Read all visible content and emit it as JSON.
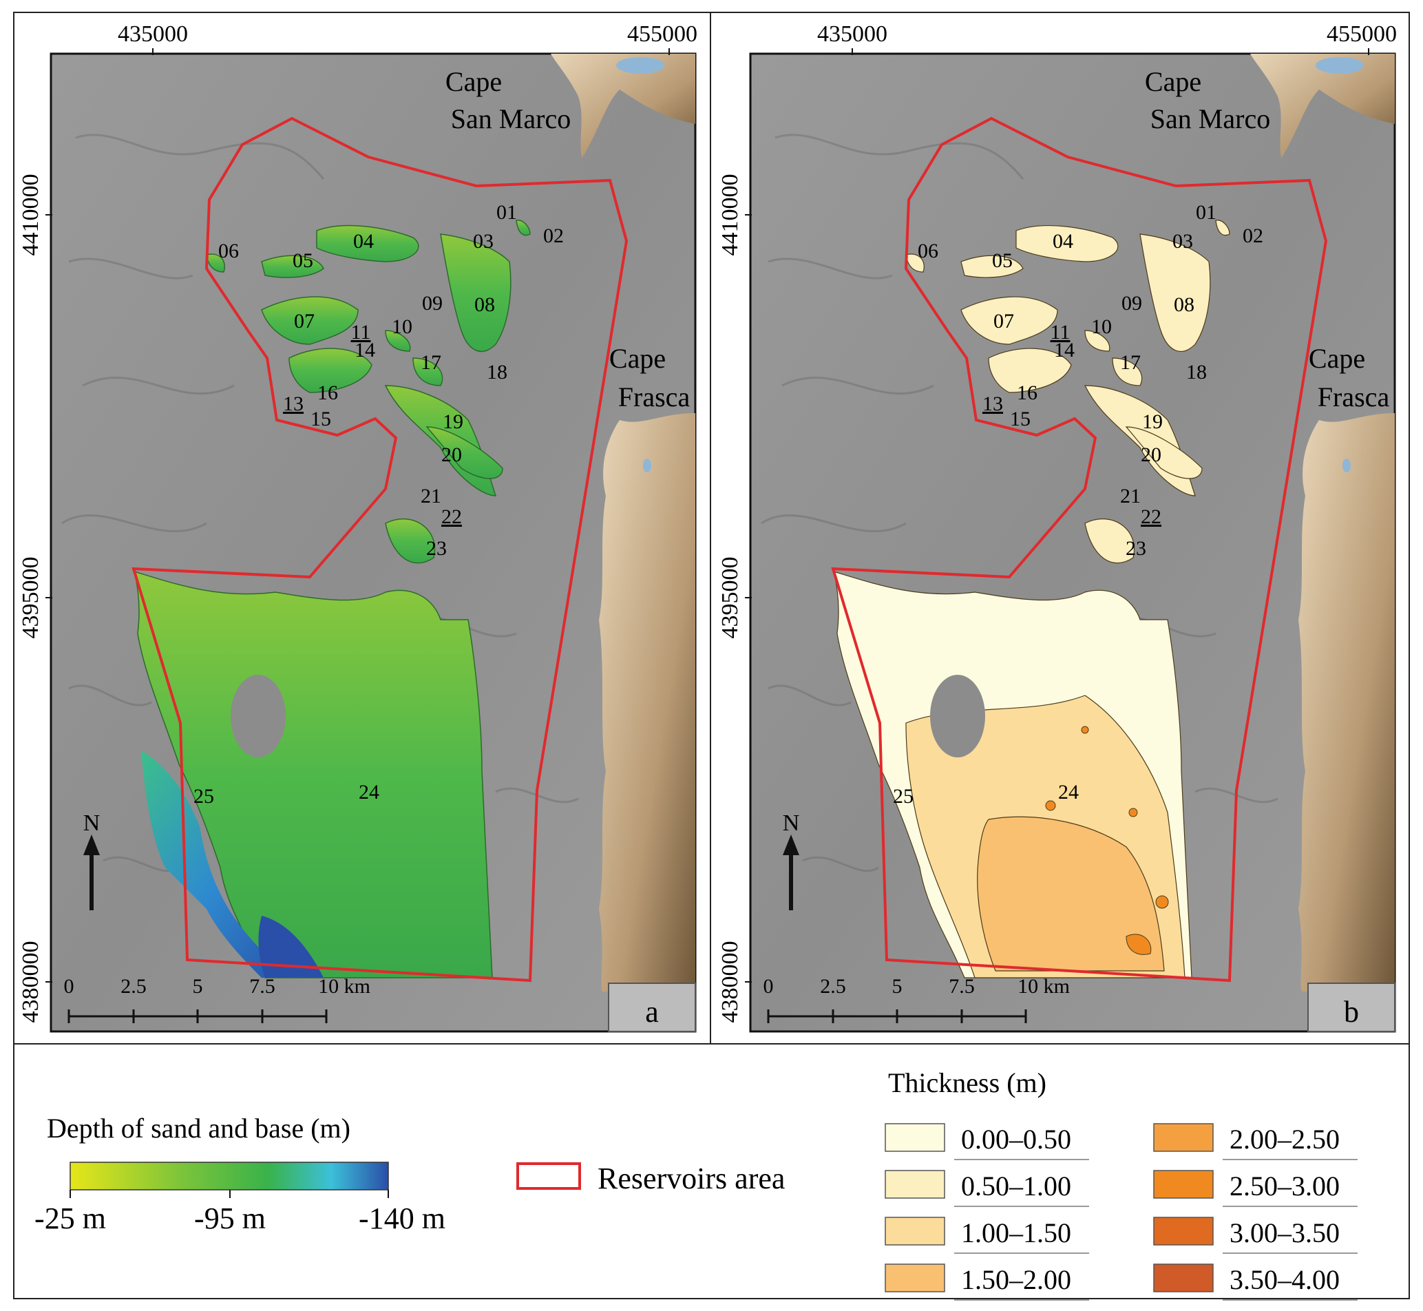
{
  "panels": [
    {
      "letter": "a",
      "x_ticks": [
        "435000",
        "455000"
      ],
      "y_ticks": [
        "4410000",
        "4395000",
        "4380000"
      ],
      "places": {
        "cape_north_1": "Cape",
        "cape_north_2": "San Marco",
        "cape_east_1": "Cape",
        "cape_east_2": "Frasca"
      },
      "scale_labels": [
        "0",
        "2.5",
        "5",
        "7.5",
        "10 km"
      ],
      "north_label": "N",
      "reservoir_ids": [
        "01",
        "02",
        "03",
        "04",
        "05",
        "06",
        "07",
        "08",
        "09",
        "10",
        "11",
        "13",
        "14",
        "15",
        "16",
        "17",
        "18",
        "19",
        "20",
        "21",
        "22",
        "23",
        "24",
        "25"
      ]
    },
    {
      "letter": "b",
      "x_ticks": [
        "435000",
        "455000"
      ],
      "y_ticks": [
        "4410000",
        "4395000",
        "4380000"
      ],
      "places": {
        "cape_north_1": "Cape",
        "cape_north_2": "San Marco",
        "cape_east_1": "Cape",
        "cape_east_2": "Frasca"
      },
      "scale_labels": [
        "0",
        "2.5",
        "5",
        "7.5",
        "10 km"
      ],
      "north_label": "N",
      "reservoir_ids": [
        "01",
        "02",
        "03",
        "04",
        "05",
        "06",
        "07",
        "08",
        "09",
        "10",
        "11",
        "13",
        "14",
        "15",
        "16",
        "17",
        "18",
        "19",
        "20",
        "21",
        "22",
        "23",
        "24",
        "25"
      ]
    }
  ],
  "legend": {
    "depth": {
      "title": "Depth of sand and base (m)",
      "stops": [
        "-25 m",
        "-95 m",
        "-140 m"
      ],
      "colors": [
        "#e6e619",
        "#5cbf3a",
        "#3ab24a",
        "#3cc0d9",
        "#2a4fa8"
      ]
    },
    "reservoir": {
      "label": "Reservoirs area",
      "color": "#e02a2e"
    },
    "thickness": {
      "title": "Thickness (m)",
      "classes": [
        {
          "label": "0.00–0.50",
          "color": "#fefce0"
        },
        {
          "label": "0.50–1.00",
          "color": "#fcefc0"
        },
        {
          "label": "1.00–1.50",
          "color": "#fcdc9a"
        },
        {
          "label": "1.50–2.00",
          "color": "#f8c070"
        },
        {
          "label": "2.00–2.50",
          "color": "#f5a040"
        },
        {
          "label": "2.50–3.00",
          "color": "#f08a20"
        },
        {
          "label": "3.00–3.50",
          "color": "#e06a20"
        },
        {
          "label": "3.50–4.00",
          "color": "#d05a28"
        }
      ]
    }
  }
}
